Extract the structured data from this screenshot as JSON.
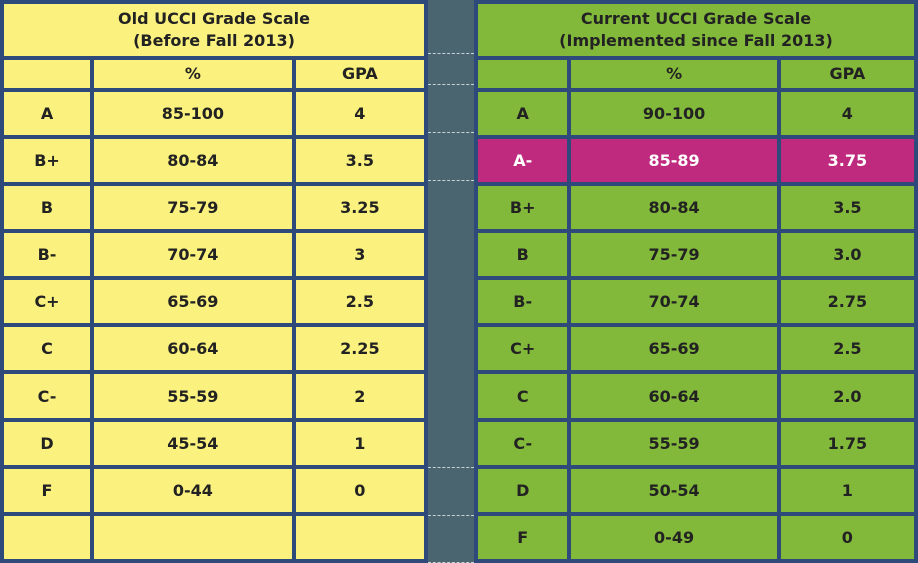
{
  "old_scale": {
    "title_line1": "Old UCCI Grade Scale",
    "title_line2": "(Before Fall 2013)",
    "headers": [
      "",
      "%",
      "GPA"
    ],
    "rows": [
      {
        "grade": "A",
        "percent": "85-100",
        "gpa": "4"
      },
      {
        "grade": "B+",
        "percent": "80-84",
        "gpa": "3.5"
      },
      {
        "grade": "B",
        "percent": "75-79",
        "gpa": "3.25"
      },
      {
        "grade": "B-",
        "percent": "70-74",
        "gpa": "3"
      },
      {
        "grade": "C+",
        "percent": "65-69",
        "gpa": "2.5"
      },
      {
        "grade": "C",
        "percent": "60-64",
        "gpa": "2.25"
      },
      {
        "grade": "C-",
        "percent": "55-59",
        "gpa": "2"
      },
      {
        "grade": "D",
        "percent": "45-54",
        "gpa": "1"
      },
      {
        "grade": "F",
        "percent": "0-44",
        "gpa": "0"
      },
      {
        "grade": "",
        "percent": "",
        "gpa": ""
      }
    ],
    "background_color": "#fbf17e"
  },
  "current_scale": {
    "title_line1": "Current  UCCI Grade Scale",
    "title_line2": "(Implemented since Fall 2013)",
    "headers": [
      "",
      "%",
      "GPA"
    ],
    "rows": [
      {
        "grade": "A",
        "percent": "90-100",
        "gpa": "4"
      },
      {
        "grade": "A-",
        "percent": "85-89",
        "gpa": "3.75",
        "highlighted": true
      },
      {
        "grade": "B+",
        "percent": "80-84",
        "gpa": "3.5"
      },
      {
        "grade": "B",
        "percent": "75-79",
        "gpa": "3.0"
      },
      {
        "grade": "B-",
        "percent": "70-74",
        "gpa": "2.75"
      },
      {
        "grade": "C+",
        "percent": "65-69",
        "gpa": "2.5"
      },
      {
        "grade": "C",
        "percent": "60-64",
        "gpa": "2.0"
      },
      {
        "grade": "C-",
        "percent": "55-59",
        "gpa": "1.75"
      },
      {
        "grade": "D",
        "percent": "50-54",
        "gpa": "1"
      },
      {
        "grade": "F",
        "percent": "0-49",
        "gpa": "0"
      }
    ],
    "background_color": "#83b93b",
    "highlight_color": "#bf2a7e"
  }
}
